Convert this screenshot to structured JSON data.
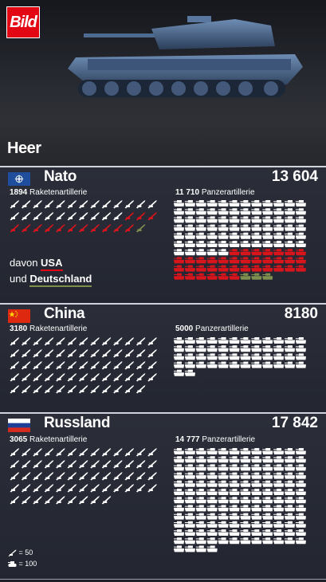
{
  "brand": {
    "logo_text": "Bild"
  },
  "hero": {
    "title": "Heer"
  },
  "colors": {
    "usa": "#d9141b",
    "deutschland": "#7f8f4e",
    "other": "#ffffff",
    "flag_nato": "#1f4e9c",
    "flag_china": "#de2910",
    "flag_russia_blue": "#1c3f95",
    "flag_russia_red": "#d52b1e"
  },
  "icons": {
    "rocket": "rocket-artillery-icon",
    "tank": "tank-icon"
  },
  "legend": {
    "rocket_text": "= 50",
    "tank_text": "= 100"
  },
  "nato_breakdown": {
    "davon": "davon",
    "usa": "USA",
    "und": "und",
    "deutschland": "Deutschland"
  },
  "chart_data": [
    {
      "type": "pictogram",
      "title": "Nato",
      "total": "13 604",
      "flag_icon": "nato-flag-icon",
      "rocket": {
        "count_text": "1894",
        "label": "Raketenartillerie",
        "icons_total": 38,
        "icons_usa": 14,
        "icons_deutschland": 1
      },
      "tank": {
        "count_text": "11 710",
        "label": "Panzerartillerie",
        "icons_total": 117,
        "icons_usa": 37,
        "icons_deutschland": 3
      }
    },
    {
      "type": "pictogram",
      "title": "China",
      "total": "8180",
      "flag_icon": "china-flag-icon",
      "rocket": {
        "count_text": "3180",
        "label": "Raketenartillerie",
        "icons_total": 64,
        "icons_usa": 0,
        "icons_deutschland": 0
      },
      "tank": {
        "count_text": "5000",
        "label": "Panzerartillerie",
        "icons_total": 50,
        "icons_usa": 0,
        "icons_deutschland": 0
      }
    },
    {
      "type": "pictogram",
      "title": "Russland",
      "total": "17 842",
      "flag_icon": "russia-flag-icon",
      "rocket": {
        "count_text": "3065",
        "label": "Raketenartillerie",
        "icons_total": 61,
        "icons_usa": 0,
        "icons_deutschland": 0
      },
      "tank": {
        "count_text": "14 777",
        "label": "Panzerartillerie",
        "icons_total": 148,
        "icons_usa": 0,
        "icons_deutschland": 0
      }
    }
  ]
}
